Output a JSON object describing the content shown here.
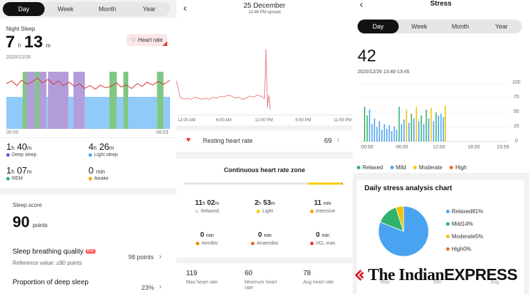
{
  "sleep": {
    "tabs": [
      "Day",
      "Week",
      "Month",
      "Year"
    ],
    "active_tab": 0,
    "section_label": "Night Sleep",
    "total_hours": "7",
    "total_minutes": "13",
    "h": "h",
    "m": "m",
    "date": "2020/12/26",
    "heart_rate_badge": "Heart rate",
    "start_time": "00:50",
    "end_time": "08:03",
    "stats": [
      {
        "value_h": "1",
        "value_m": "40",
        "label": "Deep sleep",
        "color": "#6a5acd"
      },
      {
        "value_h": "4",
        "value_m": "26",
        "label": "Light sleep",
        "color": "#4aa3f0"
      },
      {
        "value_h": "1",
        "value_m": "07",
        "label": "REM",
        "color": "#2fb36b"
      },
      {
        "value_h": "",
        "value_m": "0",
        "label": "Awake",
        "color": "#f2a900",
        "unit": "min"
      }
    ],
    "score_label": "Sleep score",
    "score_value": "90",
    "score_unit": "points",
    "breathing_title": "Sleep breathing quality",
    "breathing_badge": "Beta",
    "breathing_ref": "Reference value: ≥90 points",
    "breathing_value": "98 points",
    "deep_title": "Proportion of deep sleep",
    "deep_value": "23%",
    "chart_data": {
      "type": "bar",
      "title": "",
      "x_range": [
        "00:50",
        "08:03"
      ],
      "stage_colors": {
        "deep": "#b39ddb",
        "light": "#90caf9",
        "rem": "#81c784"
      },
      "segments": [
        {
          "stage": "light",
          "start": 0.0,
          "end": 0.1
        },
        {
          "stage": "rem",
          "start": 0.1,
          "end": 0.125
        },
        {
          "stage": "deep",
          "start": 0.125,
          "end": 0.175
        },
        {
          "stage": "rem",
          "start": 0.175,
          "end": 0.2
        },
        {
          "stage": "deep",
          "start": 0.2,
          "end": 0.245
        },
        {
          "stage": "light",
          "start": 0.245,
          "end": 0.255
        },
        {
          "stage": "deep",
          "start": 0.255,
          "end": 0.38
        },
        {
          "stage": "light",
          "start": 0.38,
          "end": 0.41
        },
        {
          "stage": "deep",
          "start": 0.41,
          "end": 0.48
        },
        {
          "stage": "light",
          "start": 0.48,
          "end": 0.63
        },
        {
          "stage": "rem",
          "start": 0.63,
          "end": 0.675
        },
        {
          "stage": "light",
          "start": 0.675,
          "end": 0.715
        },
        {
          "stage": "rem",
          "start": 0.715,
          "end": 0.745
        },
        {
          "stage": "light",
          "start": 0.745,
          "end": 0.92
        },
        {
          "stage": "rem",
          "start": 0.92,
          "end": 0.96
        },
        {
          "stage": "light",
          "start": 0.96,
          "end": 1.0
        }
      ]
    }
  },
  "heart": {
    "date_title": "25 December",
    "synced": "12:46 PM synced",
    "x_ticks": [
      "12:00 AM",
      "6:00 AM",
      "12:00 PM",
      "6:00 PM",
      "11:59 PM"
    ],
    "resting_label": "Resting heart rate",
    "resting_value": "69",
    "zone_title": "Continuous heart rate zone",
    "zones": [
      {
        "value": "11",
        "unit1": "h",
        "value2": "02",
        "unit2": "m",
        "label": "Relaxed",
        "color": "#dddddd"
      },
      {
        "value": "2",
        "unit1": "h",
        "value2": "53",
        "unit2": "m",
        "label": "Light",
        "color": "#f5d000"
      },
      {
        "value": "11",
        "unit1": "",
        "value2": "",
        "unit2": "min",
        "label": "Intensive",
        "color": "#f5a300"
      },
      {
        "value": "0",
        "unit1": "",
        "value2": "",
        "unit2": "min",
        "label": "Aerobic",
        "color": "#f08a00"
      },
      {
        "value": "0",
        "unit1": "",
        "value2": "",
        "unit2": "min",
        "label": "Anaerobic",
        "color": "#e86a10"
      },
      {
        "value": "0",
        "unit1": "",
        "value2": "",
        "unit2": "min",
        "label": "VO₂ max",
        "color": "#e53935"
      }
    ],
    "max_hr": "119",
    "max_label": "Max heart rate",
    "min_hr": "60",
    "min_label": "Minimum heart rate",
    "avg_hr": "78",
    "avg_label": "Avg heart rate",
    "chart_data": {
      "type": "line",
      "title": "",
      "x_range_hours": [
        0,
        24
      ],
      "x": [
        0.0,
        0.5,
        1.0,
        1.5,
        2.0,
        2.5,
        3.0,
        3.5,
        4.0,
        4.5,
        5.0,
        5.5,
        6.0,
        6.5,
        7.0,
        7.5,
        8.0,
        8.5,
        9.0,
        9.5,
        10.0,
        10.5,
        11.0,
        11.5,
        12.0,
        12.2,
        12.4,
        12.6,
        12.8
      ],
      "y": [
        88,
        72,
        70,
        71,
        70,
        72,
        71,
        70,
        71,
        70,
        72,
        71,
        73,
        72,
        74,
        73,
        71,
        72,
        70,
        71,
        73,
        72,
        74,
        73,
        71,
        118,
        62,
        74,
        60
      ],
      "ylim": [
        55,
        125
      ]
    }
  },
  "stress": {
    "title": "Stress",
    "tabs": [
      "Day",
      "Week",
      "Month",
      "Year"
    ],
    "active_tab": 0,
    "value": "42",
    "datetime": "2020/12/26 13:40-13:45",
    "y_ticks": [
      "100",
      "75",
      "50",
      "25",
      "0"
    ],
    "x_ticks": [
      "00:00",
      "06:00",
      "12:00",
      "18:00",
      "23:59"
    ],
    "legend": [
      {
        "label": "Relaxed",
        "color": "#2fb36b"
      },
      {
        "label": "Mild",
        "color": "#4aa3f0"
      },
      {
        "label": "Moderate",
        "color": "#f2c200"
      },
      {
        "label": "High",
        "color": "#f06a20"
      }
    ],
    "daily_title": "Daily stress analysis chart",
    "pie_labels": [
      {
        "label": "Relaxed81%",
        "color": "#4aa3f0"
      },
      {
        "label": "Mild14%",
        "color": "#2fb36b"
      },
      {
        "label": "Moderate5%",
        "color": "#f2c200"
      },
      {
        "label": "High0%",
        "color": "#f06a20"
      }
    ],
    "bottom_labels": [
      "Max",
      "Min",
      "Avg"
    ],
    "chart_data": [
      {
        "type": "bar",
        "title": "",
        "x_range_hours": [
          0,
          24
        ],
        "ylim": [
          0,
          100
        ],
        "bars": [
          {
            "x": 0.5,
            "y": 60,
            "level": "relaxed"
          },
          {
            "x": 0.9,
            "y": 45,
            "level": "relaxed"
          },
          {
            "x": 1.3,
            "y": 55,
            "level": "mild"
          },
          {
            "x": 1.7,
            "y": 30,
            "level": "mild"
          },
          {
            "x": 2.1,
            "y": 40,
            "level": "mild"
          },
          {
            "x": 2.5,
            "y": 25,
            "level": "mild"
          },
          {
            "x": 2.9,
            "y": 35,
            "level": "mild"
          },
          {
            "x": 3.3,
            "y": 20,
            "level": "mild"
          },
          {
            "x": 3.7,
            "y": 30,
            "level": "mild"
          },
          {
            "x": 4.1,
            "y": 22,
            "level": "mild"
          },
          {
            "x": 4.5,
            "y": 28,
            "level": "mild"
          },
          {
            "x": 4.9,
            "y": 18,
            "level": "mild"
          },
          {
            "x": 5.3,
            "y": 26,
            "level": "mild"
          },
          {
            "x": 5.7,
            "y": 20,
            "level": "mild"
          },
          {
            "x": 6.1,
            "y": 60,
            "level": "relaxed"
          },
          {
            "x": 6.5,
            "y": 30,
            "level": "mild"
          },
          {
            "x": 6.9,
            "y": 38,
            "level": "mild"
          },
          {
            "x": 7.3,
            "y": 55,
            "level": "moderate"
          },
          {
            "x": 7.7,
            "y": 32,
            "level": "mild"
          },
          {
            "x": 8.1,
            "y": 48,
            "level": "relaxed"
          },
          {
            "x": 8.5,
            "y": 40,
            "level": "mild"
          },
          {
            "x": 8.9,
            "y": 60,
            "level": "moderate"
          },
          {
            "x": 9.3,
            "y": 35,
            "level": "mild"
          },
          {
            "x": 9.7,
            "y": 45,
            "level": "relaxed"
          },
          {
            "x": 10.1,
            "y": 30,
            "level": "mild"
          },
          {
            "x": 10.5,
            "y": 55,
            "level": "relaxed"
          },
          {
            "x": 10.9,
            "y": 40,
            "level": "mild"
          },
          {
            "x": 11.3,
            "y": 58,
            "level": "moderate"
          },
          {
            "x": 11.7,
            "y": 35,
            "level": "mild"
          },
          {
            "x": 12.1,
            "y": 50,
            "level": "relaxed"
          },
          {
            "x": 12.5,
            "y": 45,
            "level": "mild"
          },
          {
            "x": 12.9,
            "y": 48,
            "level": "mild"
          },
          {
            "x": 13.3,
            "y": 42,
            "level": "mild"
          },
          {
            "x": 13.6,
            "y": 62,
            "level": "moderate"
          }
        ]
      },
      {
        "type": "pie",
        "title": "Daily stress analysis chart",
        "categories": [
          "Relaxed",
          "Mild",
          "Moderate",
          "High"
        ],
        "values": [
          81,
          14,
          5,
          0
        ],
        "colors": [
          "#4aa3f0",
          "#2fb36b",
          "#f2c200",
          "#f06a20"
        ]
      }
    ]
  },
  "watermark": {
    "the": "The ",
    "indian": "Indian",
    "express": "EXPRESS"
  }
}
